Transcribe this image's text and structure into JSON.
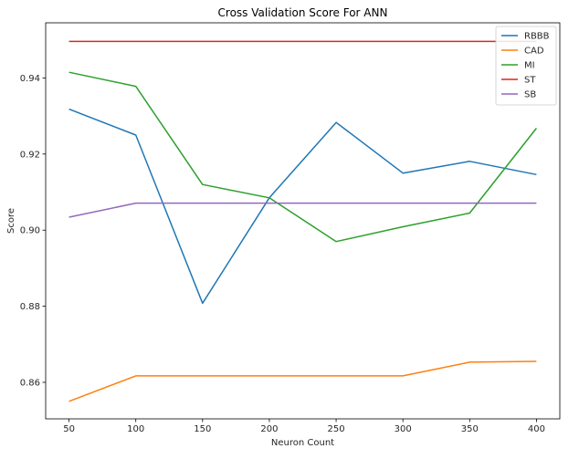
{
  "chart_data": {
    "type": "line",
    "title": "Cross Validation Score For ANN",
    "xlabel": "Neuron Count",
    "ylabel": "Score",
    "x": [
      50,
      100,
      150,
      200,
      250,
      300,
      350,
      400
    ],
    "xlim": [
      32.5,
      417.5
    ],
    "ylim": [
      0.8504,
      0.9545
    ],
    "xticks": [
      50,
      100,
      150,
      200,
      250,
      300,
      350,
      400
    ],
    "yticks": [
      0.86,
      0.88,
      0.9,
      0.92,
      0.94
    ],
    "ytick_labels": [
      "0.86",
      "0.88",
      "0.90",
      "0.92",
      "0.94"
    ],
    "grid": false,
    "legend_position": "top-right",
    "series": [
      {
        "name": "RBBB",
        "color": "#1f77b4",
        "values": [
          0.9318,
          0.925,
          0.8808,
          0.9085,
          0.9283,
          0.915,
          0.9181,
          0.9146
        ]
      },
      {
        "name": "CAD",
        "color": "#ff7f0e",
        "values": [
          0.855,
          0.8617,
          0.8617,
          0.8617,
          0.8617,
          0.8617,
          0.8653,
          0.8655
        ]
      },
      {
        "name": "MI",
        "color": "#2ca02c",
        "values": [
          0.9415,
          0.9378,
          0.912,
          0.9085,
          0.897,
          0.9009,
          0.9045,
          0.9268
        ]
      },
      {
        "name": "ST",
        "color": "#d62728",
        "values": [
          0.9496,
          0.9496,
          0.9496,
          0.9496,
          0.9496,
          0.9496,
          0.9496,
          0.9496
        ]
      },
      {
        "name": "SB",
        "color": "#9467bd",
        "values": [
          0.9034,
          0.9071,
          0.9071,
          0.9071,
          0.9071,
          0.9071,
          0.9071,
          0.9071
        ]
      }
    ]
  }
}
